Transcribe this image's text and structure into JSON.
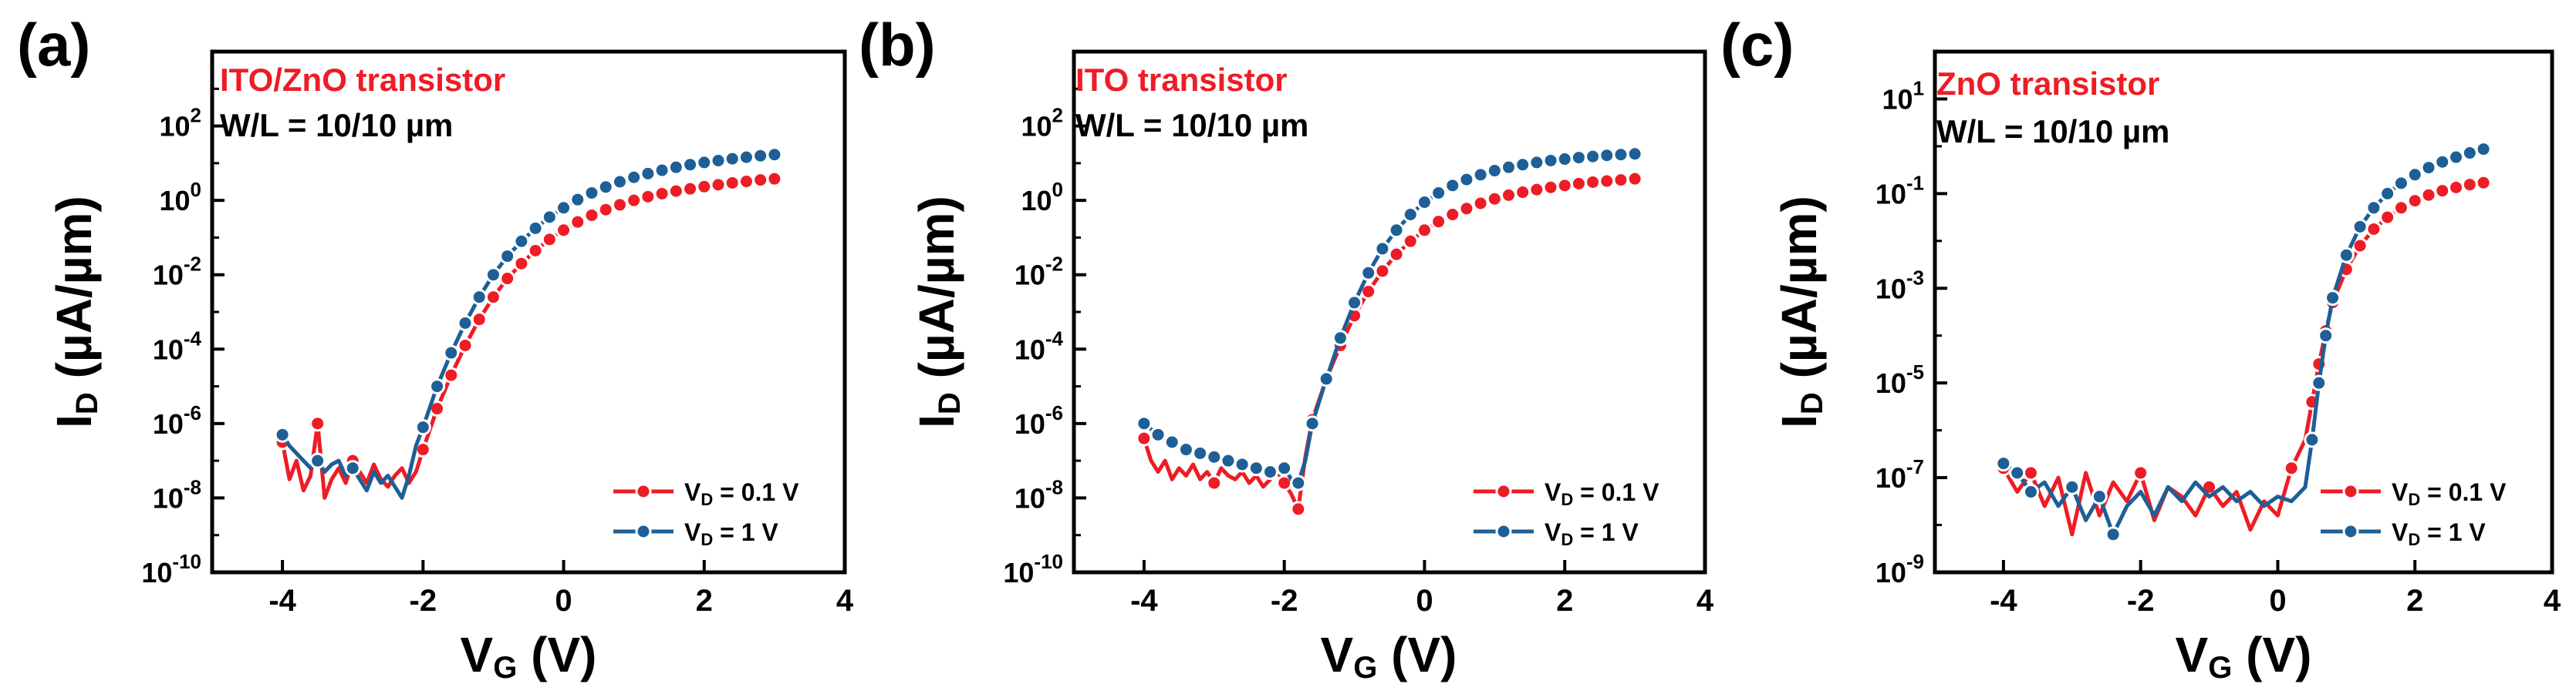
{
  "figure": {
    "colors": {
      "vd01": "#ee1c25",
      "vd1": "#1d5f96",
      "axis": "#000000"
    }
  },
  "chart_data": [
    {
      "panel_label": "(a)",
      "type": "line",
      "title_device": "ITO/ZnO transistor",
      "title_geometry": "W/L = 10/10 µm",
      "xlabel_main": "V",
      "xlabel_sub": "G",
      "xlabel_unit": " (V)",
      "ylabel_main": "I",
      "ylabel_sub": "D",
      "ylabel_unit": " (µA/µm)",
      "xlim": [
        -5,
        4
      ],
      "ylog_range": [
        -10,
        4
      ],
      "x_ticks": [
        -4,
        -2,
        0,
        2,
        4
      ],
      "x_tick_labels": [
        "-4",
        "-2",
        "0",
        "2",
        "4"
      ],
      "y_ticks": [
        -10,
        -8,
        -6,
        -4,
        -2,
        0,
        2
      ],
      "y_tick_base": "10",
      "y_tick_exps": [
        "-10",
        "-8",
        "-6",
        "-4",
        "-2",
        "0",
        "2"
      ],
      "legend": {
        "position": "bottom-right",
        "entries": [
          {
            "main": "V",
            "sub": "D",
            "rest": " = 0.1 V"
          },
          {
            "main": "V",
            "sub": "D",
            "rest": " = 1 V"
          }
        ]
      },
      "series": [
        {
          "name": "VD = 0.1 V",
          "color_key": "vd01",
          "x": [
            -4.0,
            -3.9,
            -3.8,
            -3.7,
            -3.6,
            -3.5,
            -3.4,
            -3.3,
            -3.2,
            -3.1,
            -3.0,
            -2.9,
            -2.8,
            -2.7,
            -2.6,
            -2.5,
            -2.4,
            -2.3,
            -2.2,
            -2.1,
            -2.0,
            -1.8,
            -1.6,
            -1.4,
            -1.2,
            -1.0,
            -0.8,
            -0.6,
            -0.4,
            -0.2,
            0.0,
            0.2,
            0.4,
            0.6,
            0.8,
            1.0,
            1.2,
            1.4,
            1.6,
            1.8,
            2.0,
            2.2,
            2.4,
            2.6,
            2.8,
            3.0
          ],
          "y": [
            -6.5,
            -7.5,
            -7.0,
            -7.8,
            -7.4,
            -6.0,
            -8.0,
            -7.5,
            -7.2,
            -7.6,
            -7.0,
            -7.3,
            -7.6,
            -7.1,
            -7.5,
            -7.7,
            -7.4,
            -7.2,
            -7.6,
            -7.3,
            -6.7,
            -5.6,
            -4.7,
            -3.9,
            -3.2,
            -2.6,
            -2.1,
            -1.7,
            -1.35,
            -1.05,
            -0.8,
            -0.58,
            -0.4,
            -0.25,
            -0.12,
            0.0,
            0.1,
            0.18,
            0.25,
            0.31,
            0.37,
            0.42,
            0.47,
            0.51,
            0.55,
            0.58
          ],
          "marker_x": [
            -4.0,
            -3.5,
            -3.0,
            -2.0,
            -1.8,
            -1.6,
            -1.4,
            -1.2,
            -1.0,
            -0.8,
            -0.6,
            -0.4,
            -0.2,
            0.0,
            0.2,
            0.4,
            0.6,
            0.8,
            1.0,
            1.2,
            1.4,
            1.6,
            1.8,
            2.0,
            2.2,
            2.4,
            2.6,
            2.8,
            3.0
          ]
        },
        {
          "name": "VD = 1 V",
          "color_key": "vd1",
          "x": [
            -4.0,
            -3.9,
            -3.8,
            -3.7,
            -3.6,
            -3.5,
            -3.4,
            -3.3,
            -3.2,
            -3.1,
            -3.0,
            -2.9,
            -2.8,
            -2.7,
            -2.6,
            -2.5,
            -2.4,
            -2.3,
            -2.2,
            -2.1,
            -2.0,
            -1.8,
            -1.6,
            -1.4,
            -1.2,
            -1.0,
            -0.8,
            -0.6,
            -0.4,
            -0.2,
            0.0,
            0.2,
            0.4,
            0.6,
            0.8,
            1.0,
            1.2,
            1.4,
            1.6,
            1.8,
            2.0,
            2.2,
            2.4,
            2.6,
            2.8,
            3.0
          ],
          "y": [
            -6.3,
            -6.6,
            -6.8,
            -7.0,
            -7.2,
            -7.0,
            -7.3,
            -7.1,
            -7.0,
            -7.4,
            -7.2,
            -7.5,
            -7.8,
            -7.3,
            -7.6,
            -7.4,
            -7.7,
            -8.0,
            -7.4,
            -6.6,
            -6.1,
            -5.0,
            -4.1,
            -3.3,
            -2.6,
            -2.0,
            -1.5,
            -1.1,
            -0.75,
            -0.45,
            -0.2,
            0.02,
            0.2,
            0.36,
            0.5,
            0.62,
            0.72,
            0.81,
            0.89,
            0.96,
            1.02,
            1.07,
            1.12,
            1.16,
            1.2,
            1.23
          ],
          "marker_x": [
            -4.0,
            -3.5,
            -3.0,
            -2.0,
            -1.8,
            -1.6,
            -1.4,
            -1.2,
            -1.0,
            -0.8,
            -0.6,
            -0.4,
            -0.2,
            0.0,
            0.2,
            0.4,
            0.6,
            0.8,
            1.0,
            1.2,
            1.4,
            1.6,
            1.8,
            2.0,
            2.2,
            2.4,
            2.6,
            2.8,
            3.0
          ]
        }
      ]
    },
    {
      "panel_label": "(b)",
      "type": "line",
      "title_device": "ITO transistor",
      "title_geometry": "W/L = 10/10 µm",
      "xlabel_main": "V",
      "xlabel_sub": "G",
      "xlabel_unit": " (V)",
      "ylabel_main": "I",
      "ylabel_sub": "D",
      "ylabel_unit": " (µA/µm)",
      "xlim": [
        -5,
        4
      ],
      "ylog_range": [
        -10,
        4
      ],
      "x_ticks": [
        -4,
        -2,
        0,
        2,
        4
      ],
      "x_tick_labels": [
        "-4",
        "-2",
        "0",
        "2",
        "4"
      ],
      "y_ticks": [
        -10,
        -8,
        -6,
        -4,
        -2,
        0,
        2
      ],
      "y_tick_base": "10",
      "y_tick_exps": [
        "-10",
        "-8",
        "-6",
        "-4",
        "-2",
        "0",
        "2"
      ],
      "legend": {
        "position": "bottom-right",
        "entries": [
          {
            "main": "V",
            "sub": "D",
            "rest": " = 0.1 V"
          },
          {
            "main": "V",
            "sub": "D",
            "rest": " = 1 V"
          }
        ]
      },
      "series": [
        {
          "name": "VD = 0.1 V",
          "color_key": "vd01",
          "x": [
            -4.0,
            -3.9,
            -3.8,
            -3.7,
            -3.6,
            -3.5,
            -3.4,
            -3.3,
            -3.2,
            -3.1,
            -3.0,
            -2.9,
            -2.8,
            -2.7,
            -2.6,
            -2.5,
            -2.4,
            -2.3,
            -2.2,
            -2.1,
            -2.0,
            -1.9,
            -1.8,
            -1.7,
            -1.6,
            -1.4,
            -1.2,
            -1.0,
            -0.8,
            -0.6,
            -0.4,
            -0.2,
            0.0,
            0.2,
            0.4,
            0.6,
            0.8,
            1.0,
            1.2,
            1.4,
            1.6,
            1.8,
            2.0,
            2.2,
            2.4,
            2.6,
            2.8,
            3.0
          ],
          "y": [
            -6.4,
            -7.0,
            -7.3,
            -7.0,
            -7.5,
            -7.2,
            -7.4,
            -7.1,
            -7.5,
            -7.3,
            -7.6,
            -7.2,
            -7.4,
            -7.5,
            -7.3,
            -7.6,
            -7.4,
            -7.7,
            -7.5,
            -7.3,
            -7.6,
            -7.9,
            -8.3,
            -6.9,
            -5.9,
            -4.8,
            -3.9,
            -3.1,
            -2.45,
            -1.9,
            -1.45,
            -1.1,
            -0.8,
            -0.57,
            -0.38,
            -0.22,
            -0.08,
            0.04,
            0.14,
            0.22,
            0.29,
            0.35,
            0.4,
            0.45,
            0.49,
            0.52,
            0.55,
            0.58
          ],
          "marker_x": [
            -4.0,
            -3.0,
            -2.0,
            -1.8,
            -1.6,
            -1.4,
            -1.2,
            -1.0,
            -0.8,
            -0.6,
            -0.4,
            -0.2,
            0.0,
            0.2,
            0.4,
            0.6,
            0.8,
            1.0,
            1.2,
            1.4,
            1.6,
            1.8,
            2.0,
            2.2,
            2.4,
            2.6,
            2.8,
            3.0
          ]
        },
        {
          "name": "VD = 1 V",
          "color_key": "vd1",
          "x": [
            -4.0,
            -3.8,
            -3.6,
            -3.4,
            -3.2,
            -3.0,
            -2.8,
            -2.6,
            -2.4,
            -2.2,
            -2.0,
            -1.9,
            -1.8,
            -1.7,
            -1.6,
            -1.4,
            -1.2,
            -1.0,
            -0.8,
            -0.6,
            -0.4,
            -0.2,
            0.0,
            0.2,
            0.4,
            0.6,
            0.8,
            1.0,
            1.2,
            1.4,
            1.6,
            1.8,
            2.0,
            2.2,
            2.4,
            2.6,
            2.8,
            3.0
          ],
          "y": [
            -6.0,
            -6.3,
            -6.5,
            -6.7,
            -6.8,
            -6.9,
            -7.0,
            -7.1,
            -7.2,
            -7.3,
            -7.2,
            -7.5,
            -7.6,
            -7.0,
            -6.0,
            -4.8,
            -3.7,
            -2.75,
            -1.95,
            -1.3,
            -0.8,
            -0.38,
            -0.05,
            0.2,
            0.4,
            0.56,
            0.69,
            0.8,
            0.89,
            0.96,
            1.02,
            1.07,
            1.11,
            1.15,
            1.18,
            1.21,
            1.23,
            1.25
          ],
          "marker_x": [
            -4.0,
            -3.8,
            -3.6,
            -3.4,
            -3.2,
            -3.0,
            -2.8,
            -2.6,
            -2.4,
            -2.2,
            -2.0,
            -1.8,
            -1.6,
            -1.4,
            -1.2,
            -1.0,
            -0.8,
            -0.6,
            -0.4,
            -0.2,
            0.0,
            0.2,
            0.4,
            0.6,
            0.8,
            1.0,
            1.2,
            1.4,
            1.6,
            1.8,
            2.0,
            2.2,
            2.4,
            2.6,
            2.8,
            3.0
          ]
        }
      ]
    },
    {
      "panel_label": "(c)",
      "type": "line",
      "title_device": "ZnO transistor",
      "title_geometry": "W/L = 10/10 µm",
      "xlabel_main": "V",
      "xlabel_sub": "G",
      "xlabel_unit": " (V)",
      "ylabel_main": "I",
      "ylabel_sub": "D",
      "ylabel_unit": " (µA/µm)",
      "xlim": [
        -5,
        4
      ],
      "ylog_range": [
        -9,
        2
      ],
      "x_ticks": [
        -4,
        -2,
        0,
        2,
        4
      ],
      "x_tick_labels": [
        "-4",
        "-2",
        "0",
        "2",
        "4"
      ],
      "y_ticks": [
        -9,
        -7,
        -5,
        -3,
        -1,
        1
      ],
      "y_tick_base": "10",
      "y_tick_exps": [
        "-9",
        "-7",
        "-5",
        "-3",
        "-1",
        "1"
      ],
      "legend": {
        "position": "bottom-right",
        "entries": [
          {
            "main": "V",
            "sub": "D",
            "rest": " = 0.1 V"
          },
          {
            "main": "V",
            "sub": "D",
            "rest": " = 1 V"
          }
        ]
      },
      "series": [
        {
          "name": "VD = 0.1 V",
          "color_key": "vd01",
          "x": [
            -4.0,
            -3.8,
            -3.6,
            -3.4,
            -3.2,
            -3.0,
            -2.8,
            -2.6,
            -2.4,
            -2.2,
            -2.0,
            -1.8,
            -1.6,
            -1.4,
            -1.2,
            -1.0,
            -0.8,
            -0.6,
            -0.4,
            -0.2,
            0.0,
            0.2,
            0.4,
            0.5,
            0.6,
            0.7,
            0.8,
            1.0,
            1.2,
            1.4,
            1.6,
            1.8,
            2.0,
            2.2,
            2.4,
            2.6,
            2.8,
            3.0
          ],
          "y": [
            -6.8,
            -7.3,
            -6.9,
            -7.6,
            -7.0,
            -8.2,
            -6.9,
            -7.8,
            -7.1,
            -7.5,
            -6.9,
            -7.9,
            -7.2,
            -7.4,
            -7.8,
            -7.2,
            -7.6,
            -7.3,
            -8.1,
            -7.5,
            -7.8,
            -6.8,
            -6.2,
            -5.4,
            -4.6,
            -3.9,
            -3.3,
            -2.6,
            -2.1,
            -1.75,
            -1.5,
            -1.3,
            -1.15,
            -1.03,
            -0.94,
            -0.87,
            -0.81,
            -0.77
          ],
          "marker_x": [
            -4.0,
            -3.6,
            -2.0,
            -1.0,
            0.2,
            0.5,
            0.6,
            0.7,
            0.8,
            1.0,
            1.2,
            1.4,
            1.6,
            1.8,
            2.0,
            2.2,
            2.4,
            2.6,
            2.8,
            3.0
          ]
        },
        {
          "name": "VD = 1 V",
          "color_key": "vd1",
          "x": [
            -4.0,
            -3.8,
            -3.6,
            -3.4,
            -3.2,
            -3.0,
            -2.8,
            -2.6,
            -2.4,
            -2.2,
            -2.0,
            -1.8,
            -1.6,
            -1.4,
            -1.2,
            -1.0,
            -0.8,
            -0.6,
            -0.4,
            -0.2,
            0.0,
            0.2,
            0.4,
            0.5,
            0.6,
            0.7,
            0.8,
            1.0,
            1.2,
            1.4,
            1.6,
            1.8,
            2.0,
            2.2,
            2.4,
            2.6,
            2.8,
            3.0
          ],
          "y": [
            -6.7,
            -6.9,
            -7.3,
            -7.1,
            -7.6,
            -7.2,
            -7.9,
            -7.4,
            -8.2,
            -7.6,
            -7.3,
            -7.8,
            -7.2,
            -7.5,
            -7.1,
            -7.4,
            -7.2,
            -7.5,
            -7.3,
            -7.6,
            -7.4,
            -7.5,
            -7.2,
            -6.2,
            -5.0,
            -4.0,
            -3.2,
            -2.3,
            -1.7,
            -1.3,
            -1.0,
            -0.78,
            -0.6,
            -0.45,
            -0.33,
            -0.23,
            -0.14,
            -0.06
          ],
          "marker_x": [
            -4.0,
            -3.8,
            -3.6,
            -3.0,
            -2.6,
            -2.4,
            0.5,
            0.6,
            0.7,
            0.8,
            1.0,
            1.2,
            1.4,
            1.6,
            1.8,
            2.0,
            2.2,
            2.4,
            2.6,
            2.8,
            3.0
          ]
        }
      ]
    }
  ]
}
